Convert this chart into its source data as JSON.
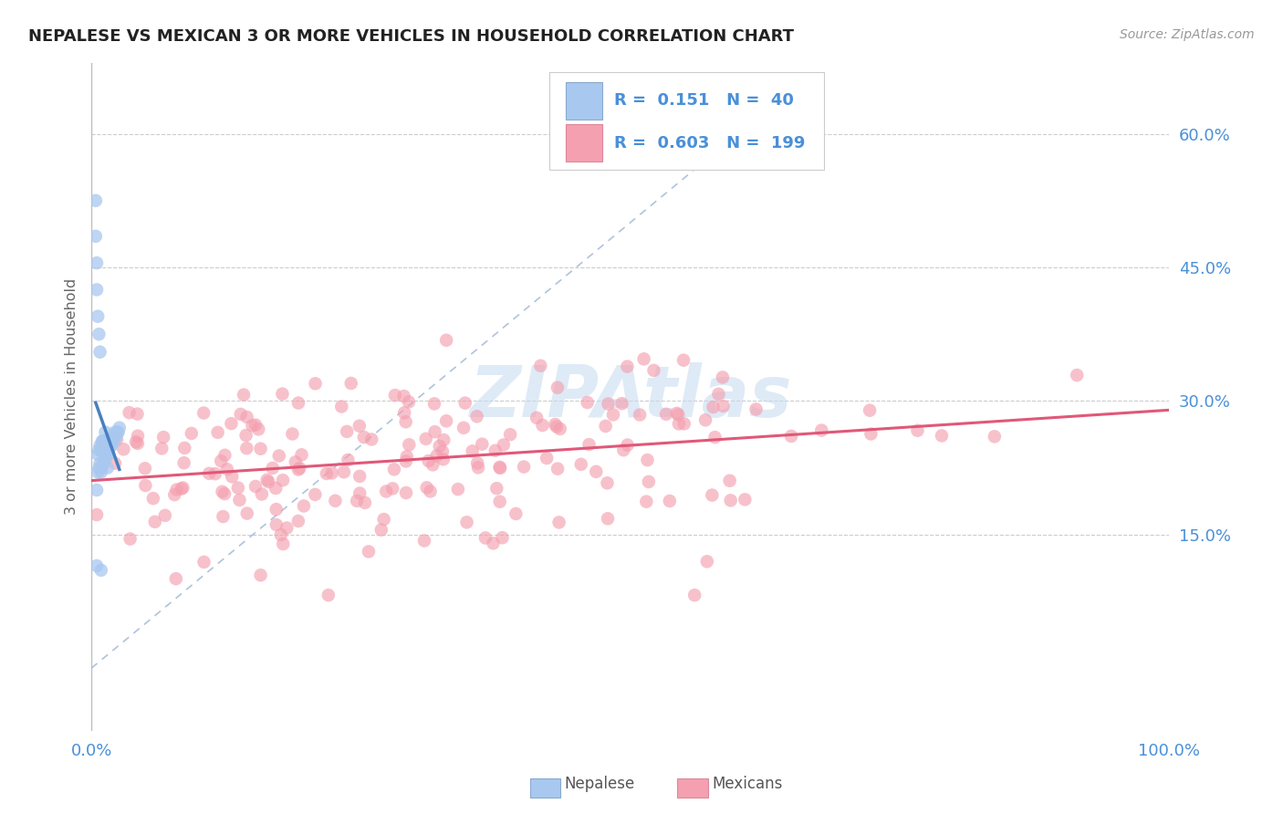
{
  "title": "NEPALESE VS MEXICAN 3 OR MORE VEHICLES IN HOUSEHOLD CORRELATION CHART",
  "source_text": "Source: ZipAtlas.com",
  "ylabel": "3 or more Vehicles in Household",
  "xlim": [
    0.0,
    1.0
  ],
  "ylim": [
    -0.07,
    0.68
  ],
  "yticks": [
    0.15,
    0.3,
    0.45,
    0.6
  ],
  "ytick_labels": [
    "15.0%",
    "30.0%",
    "45.0%",
    "60.0%"
  ],
  "xticks": [
    0.0,
    1.0
  ],
  "xtick_labels": [
    "0.0%",
    "100.0%"
  ],
  "nepalese_R": 0.151,
  "nepalese_N": 40,
  "mexican_R": 0.603,
  "mexican_N": 199,
  "nepalese_color": "#a8c8f0",
  "mexican_color": "#f4a0b0",
  "nepalese_line_color": "#4a7fc0",
  "mexican_line_color": "#e05878",
  "title_color": "#222222",
  "tick_color": "#4a90d9",
  "background_color": "#ffffff",
  "watermark_text": "ZIPAtlas",
  "watermark_color": "#c8ddf0",
  "grid_color": "#cccccc",
  "diag_color": "#a0b8d8"
}
